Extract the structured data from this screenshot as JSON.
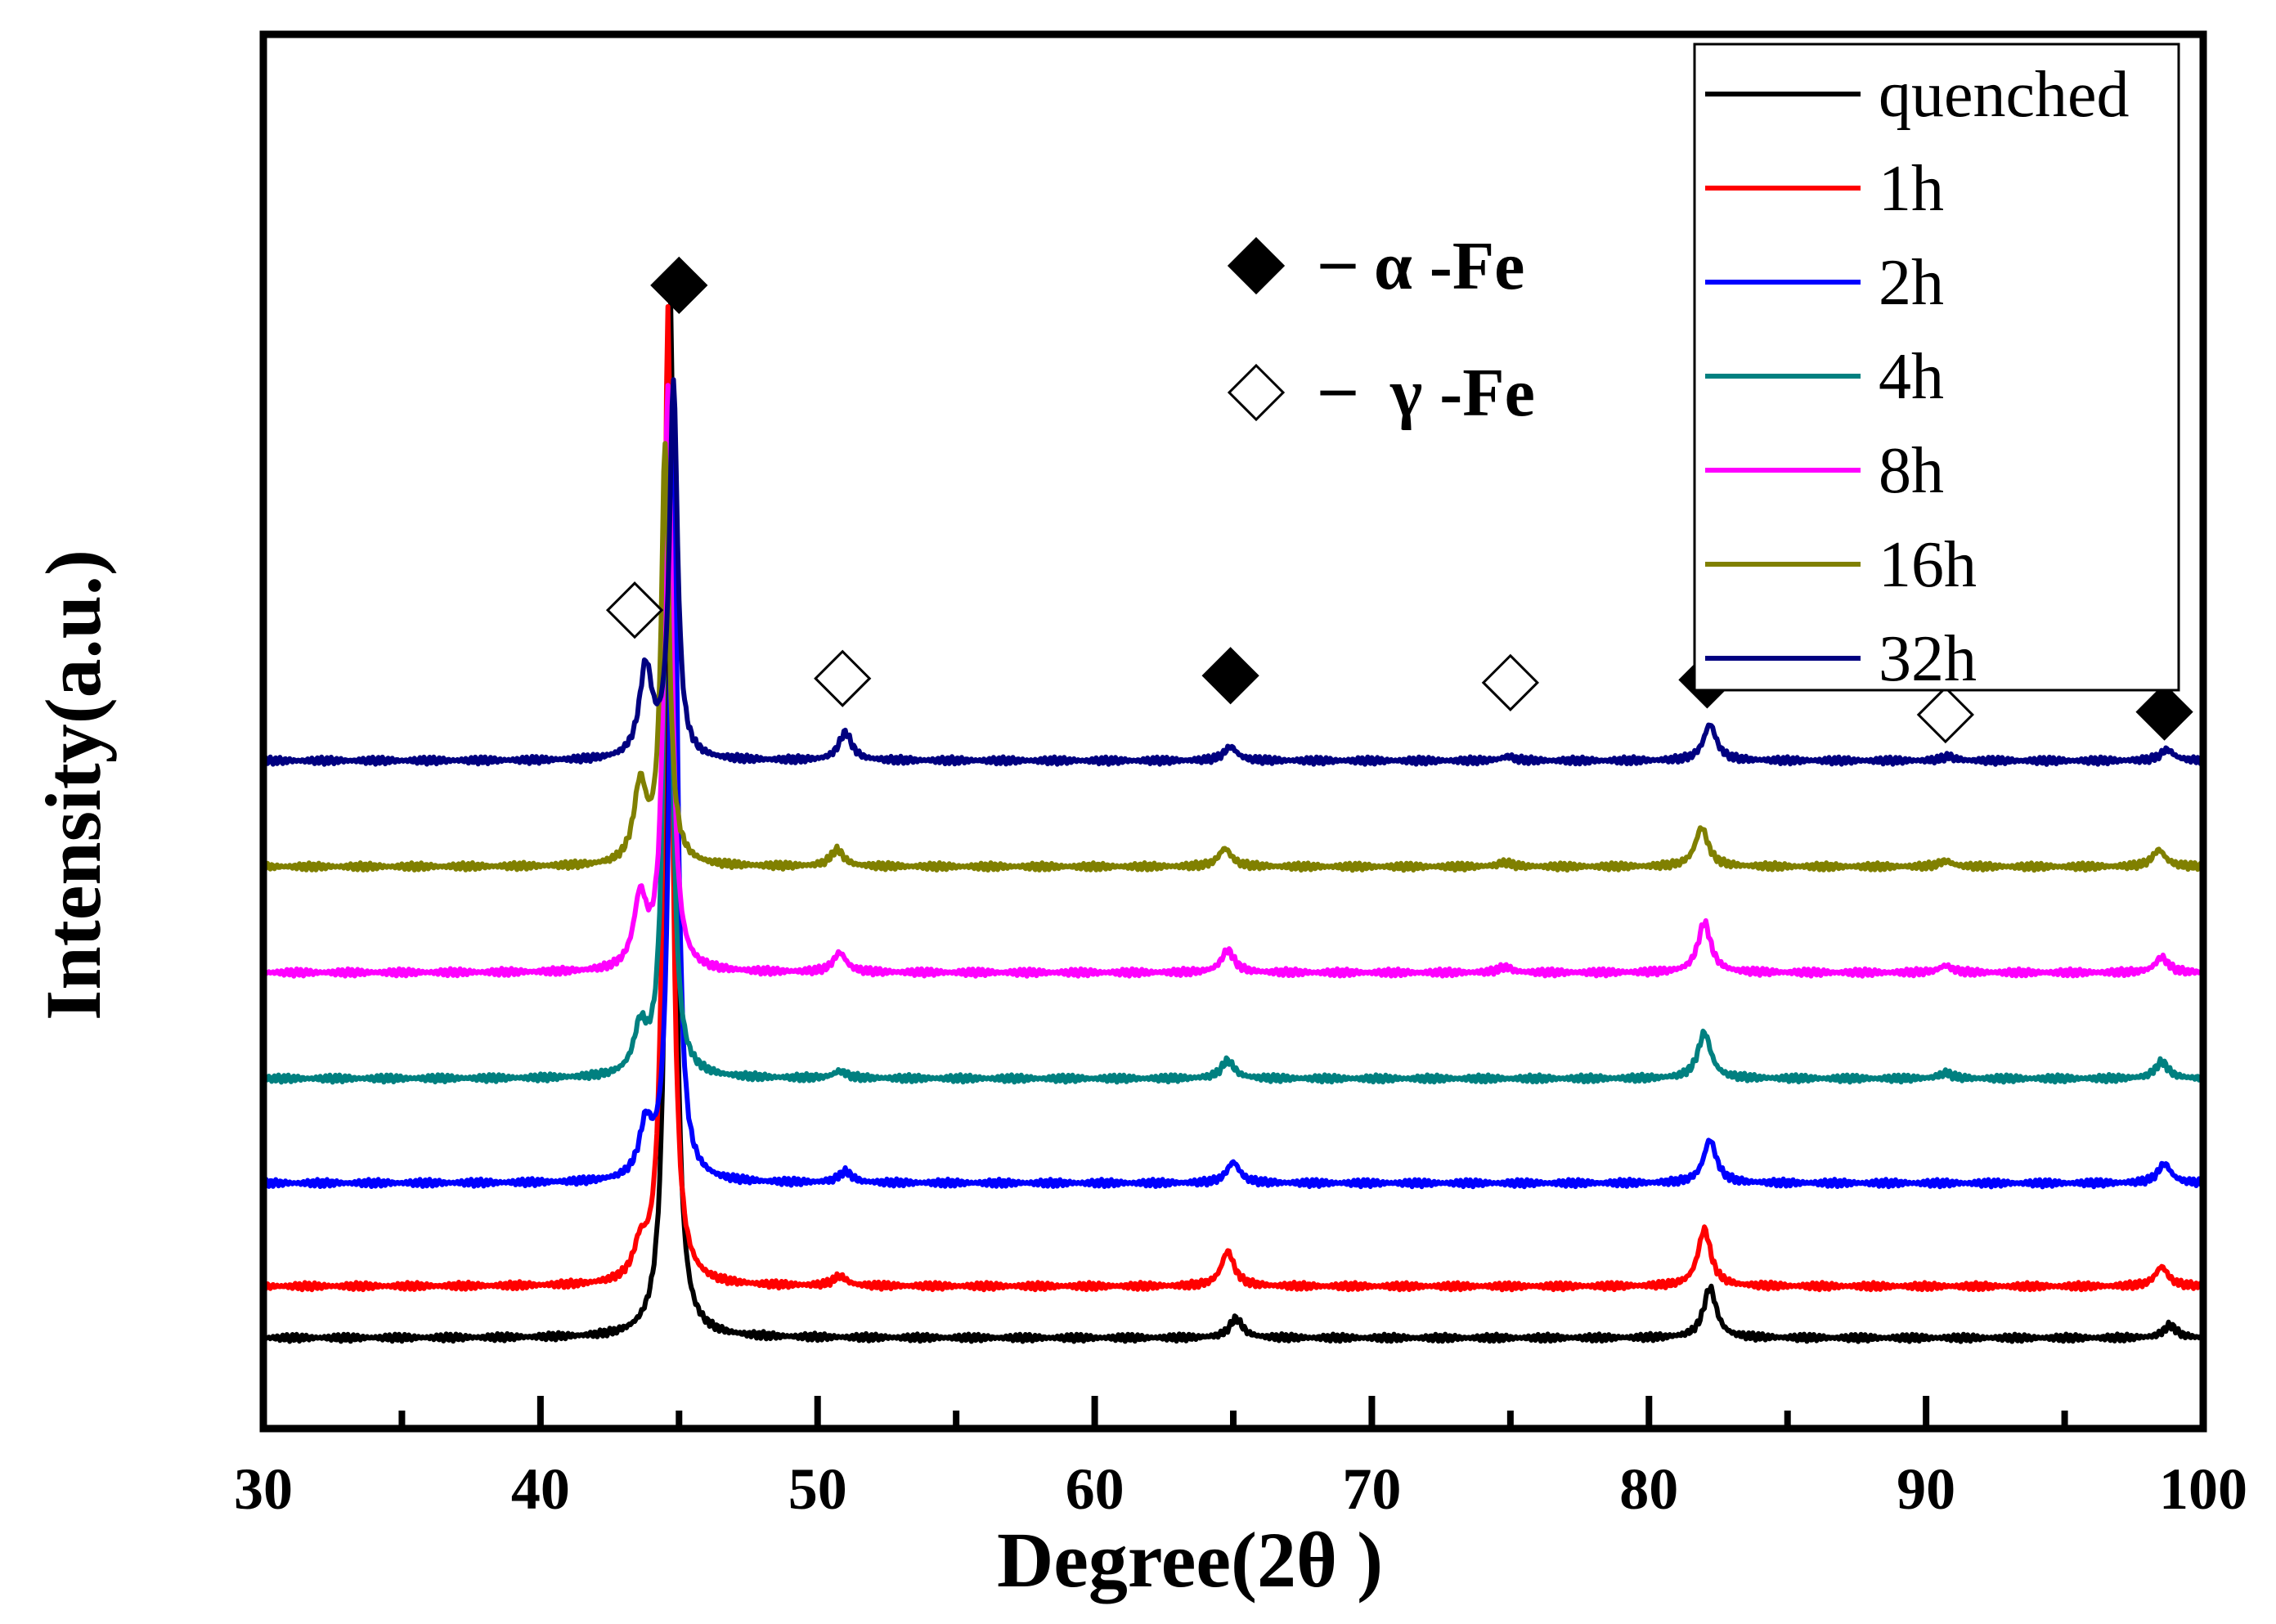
{
  "chart_data": {
    "type": "line",
    "title": "",
    "xlabel": "Degree(2θ )",
    "ylabel": "Intensity(a.u.)",
    "xlim": [
      30,
      100
    ],
    "xticks": [
      30,
      40,
      50,
      60,
      70,
      80,
      90,
      100
    ],
    "xtick_labels": [
      "30",
      "40",
      "50",
      "60",
      "70",
      "80",
      "90",
      "100"
    ],
    "yticks_labeled": false,
    "legend_position": "top-right",
    "peak_positions": [
      43.7,
      44.7,
      50.8,
      64.9,
      74.8,
      82.1,
      90.7,
      98.6
    ],
    "series": [
      {
        "name": "quenched",
        "color": "#000000",
        "baseline": 0.065,
        "peaks": [
          {
            "x": 44.7,
            "h": 0.74
          },
          {
            "x": 65.1,
            "h": 0.014
          },
          {
            "x": 82.2,
            "h": 0.036
          },
          {
            "x": 98.8,
            "h": 0.009
          }
        ]
      },
      {
        "name": "1h",
        "color": "#ff0000",
        "baseline": 0.102,
        "peaks": [
          {
            "x": 43.6,
            "h": 0.022
          },
          {
            "x": 44.6,
            "h": 0.7
          },
          {
            "x": 50.8,
            "h": 0.007
          },
          {
            "x": 64.8,
            "h": 0.025
          },
          {
            "x": 82.0,
            "h": 0.041
          },
          {
            "x": 98.5,
            "h": 0.014
          }
        ]
      },
      {
        "name": "2h",
        "color": "#0000ff",
        "baseline": 0.176,
        "peaks": [
          {
            "x": 43.8,
            "h": 0.036
          },
          {
            "x": 44.8,
            "h": 0.55
          },
          {
            "x": 51.0,
            "h": 0.008
          },
          {
            "x": 65.0,
            "h": 0.015
          },
          {
            "x": 82.2,
            "h": 0.031
          },
          {
            "x": 98.6,
            "h": 0.014
          }
        ]
      },
      {
        "name": "4h",
        "color": "#008080",
        "baseline": 0.251,
        "peaks": [
          {
            "x": 43.6,
            "h": 0.032
          },
          {
            "x": 44.6,
            "h": 0.48
          },
          {
            "x": 50.8,
            "h": 0.005
          },
          {
            "x": 64.8,
            "h": 0.013
          },
          {
            "x": 82.0,
            "h": 0.033
          },
          {
            "x": 90.7,
            "h": 0.004
          },
          {
            "x": 98.5,
            "h": 0.012
          }
        ]
      },
      {
        "name": "8h",
        "color": "#ff00ff",
        "baseline": 0.327,
        "peaks": [
          {
            "x": 43.6,
            "h": 0.05
          },
          {
            "x": 44.6,
            "h": 0.42
          },
          {
            "x": 50.8,
            "h": 0.014
          },
          {
            "x": 64.8,
            "h": 0.016
          },
          {
            "x": 74.8,
            "h": 0.004
          },
          {
            "x": 82.0,
            "h": 0.036
          },
          {
            "x": 90.7,
            "h": 0.005
          },
          {
            "x": 98.5,
            "h": 0.011
          }
        ]
      },
      {
        "name": "16h",
        "color": "#808000",
        "baseline": 0.403,
        "peaks": [
          {
            "x": 43.6,
            "h": 0.056
          },
          {
            "x": 44.5,
            "h": 0.3
          },
          {
            "x": 50.7,
            "h": 0.012
          },
          {
            "x": 64.7,
            "h": 0.013
          },
          {
            "x": 74.8,
            "h": 0.003
          },
          {
            "x": 81.9,
            "h": 0.028
          },
          {
            "x": 90.7,
            "h": 0.004
          },
          {
            "x": 98.4,
            "h": 0.012
          }
        ]
      },
      {
        "name": "32h",
        "color": "#000080",
        "baseline": 0.479,
        "peaks": [
          {
            "x": 43.8,
            "h": 0.065
          },
          {
            "x": 44.8,
            "h": 0.27
          },
          {
            "x": 51.0,
            "h": 0.02
          },
          {
            "x": 64.9,
            "h": 0.01
          },
          {
            "x": 74.9,
            "h": 0.003
          },
          {
            "x": 82.2,
            "h": 0.026
          },
          {
            "x": 90.8,
            "h": 0.003
          },
          {
            "x": 98.7,
            "h": 0.008
          }
        ]
      }
    ],
    "phase_legend": [
      {
        "symbol": "filled-diamond-icon",
        "dash": "–",
        "label": "α -Fe"
      },
      {
        "symbol": "open-diamond-icon",
        "dash": "–",
        "label": "γ -Fe"
      }
    ],
    "phase_markers": [
      {
        "x": 45.0,
        "y": 0.82,
        "phase": "alpha"
      },
      {
        "x": 43.4,
        "y": 0.587,
        "phase": "gamma"
      },
      {
        "x": 50.9,
        "y": 0.538,
        "phase": "gamma"
      },
      {
        "x": 64.9,
        "y": 0.54,
        "phase": "alpha"
      },
      {
        "x": 75.0,
        "y": 0.535,
        "phase": "gamma"
      },
      {
        "x": 82.1,
        "y": 0.537,
        "phase": "alpha"
      },
      {
        "x": 90.7,
        "y": 0.512,
        "phase": "gamma"
      },
      {
        "x": 98.6,
        "y": 0.514,
        "phase": "alpha"
      }
    ]
  },
  "colors": {
    "axis": "#000000",
    "background": "#ffffff"
  }
}
